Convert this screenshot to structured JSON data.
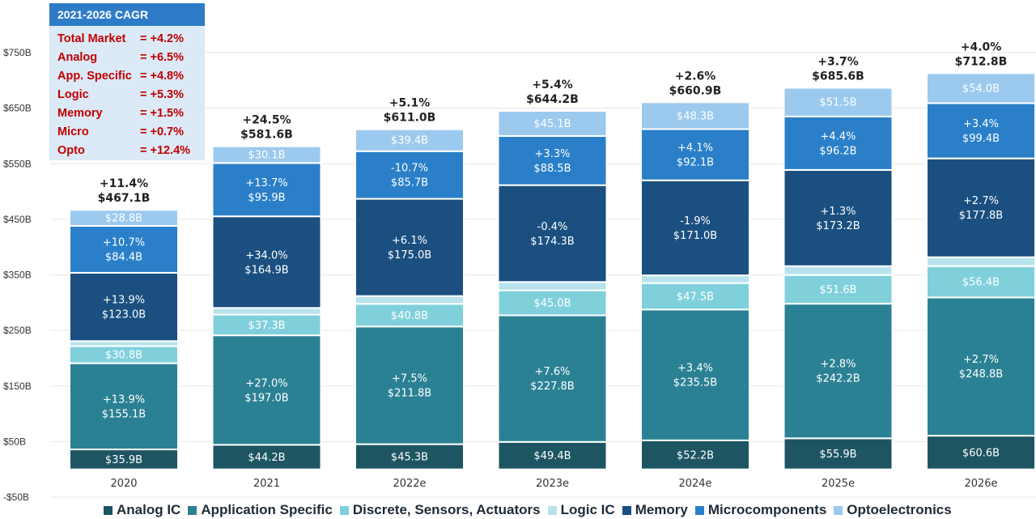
{
  "chart_data": {
    "type": "bar",
    "stacked": true,
    "categories": [
      "2020",
      "2021",
      "2022e",
      "2023e",
      "2024e",
      "2025e",
      "2026e"
    ],
    "yticks": [
      "$750B",
      "$650B",
      "$550B",
      "$450B",
      "$350B",
      "$250B",
      "$150B",
      "$50B",
      "-$50B"
    ],
    "ylim": [
      -50,
      750
    ],
    "grid": true,
    "legend_position": "bottom",
    "totals": [
      {
        "growth": "+11.4%",
        "total": "$467.1B",
        "value": 467.1
      },
      {
        "growth": "+24.5%",
        "total": "$581.6B",
        "value": 581.6
      },
      {
        "growth": "+5.1%",
        "total": "$611.0B",
        "value": 611.0
      },
      {
        "growth": "+5.4%",
        "total": "$644.2B",
        "value": 644.2
      },
      {
        "growth": "+2.6%",
        "total": "$660.9B",
        "value": 660.9
      },
      {
        "growth": "+3.7%",
        "total": "$685.6B",
        "value": 685.6
      },
      {
        "growth": "+4.0%",
        "total": "$712.8B",
        "value": 712.8
      }
    ],
    "series": [
      {
        "name": "Analog IC",
        "color": "#1d5563",
        "values": [
          35.9,
          44.2,
          45.3,
          49.4,
          52.2,
          55.9,
          60.6
        ],
        "labels": [
          [
            "$35.9B"
          ],
          [
            "$44.2B"
          ],
          [
            "$45.3B"
          ],
          [
            "$49.4B"
          ],
          [
            "$52.2B"
          ],
          [
            "$55.9B"
          ],
          [
            "$60.6B"
          ]
        ]
      },
      {
        "name": "Application Specific",
        "color": "#2b8194",
        "values": [
          155.1,
          197.0,
          211.8,
          227.8,
          235.5,
          242.2,
          248.8
        ],
        "labels": [
          [
            "+13.9%",
            "$155.1B"
          ],
          [
            "+27.0%",
            "$197.0B"
          ],
          [
            "+7.5%",
            "$211.8B"
          ],
          [
            "+7.6%",
            "$227.8B"
          ],
          [
            "+3.4%",
            "$235.5B"
          ],
          [
            "+2.8%",
            "$242.2B"
          ],
          [
            "+2.7%",
            "$248.8B"
          ]
        ]
      },
      {
        "name": "Discrete, Sensors, Actuators",
        "color": "#80d0dc",
        "values": [
          30.8,
          37.3,
          40.8,
          45.0,
          47.5,
          51.6,
          56.4
        ],
        "labels": [
          [
            "$30.8B"
          ],
          [
            "$37.3B"
          ],
          [
            "$40.8B"
          ],
          [
            "$45.0B"
          ],
          [
            "$47.5B"
          ],
          [
            "$51.6B"
          ],
          [
            "$56.4B"
          ]
        ]
      },
      {
        "name": "Logic IC",
        "color": "#b8e3ec",
        "values": [
          9,
          12,
          14,
          15,
          14,
          16,
          16
        ],
        "labels": [
          [],
          [],
          [],
          [],
          [],
          [],
          []
        ]
      },
      {
        "name": "Memory",
        "color": "#1a4f80",
        "values": [
          123.0,
          164.9,
          175.0,
          174.3,
          171.0,
          173.2,
          177.8
        ],
        "labels": [
          [
            "+13.9%",
            "$123.0B"
          ],
          [
            "+34.0%",
            "$164.9B"
          ],
          [
            "+6.1%",
            "$175.0B"
          ],
          [
            "-0.4%",
            "$174.3B"
          ],
          [
            "-1.9%",
            "$171.0B"
          ],
          [
            "+1.3%",
            "$173.2B"
          ],
          [
            "+2.7%",
            "$177.8B"
          ]
        ]
      },
      {
        "name": "Microcomponents",
        "color": "#2a7fc8",
        "values": [
          84.4,
          95.9,
          85.7,
          88.5,
          92.1,
          96.2,
          99.4
        ],
        "labels": [
          [
            "+10.7%",
            "$84.4B"
          ],
          [
            "+13.7%",
            "$95.9B"
          ],
          [
            "-10.7%",
            "$85.7B"
          ],
          [
            "+3.3%",
            "$88.5B"
          ],
          [
            "+4.1%",
            "$92.1B"
          ],
          [
            "+4.4%",
            "$96.2B"
          ],
          [
            "+3.4%",
            "$99.4B"
          ]
        ]
      },
      {
        "name": "Optoelectronics",
        "color": "#9cc9ee",
        "values": [
          28.8,
          30.1,
          39.4,
          45.1,
          48.3,
          51.5,
          54.0
        ],
        "labels": [
          [
            "$28.8B"
          ],
          [
            "$30.1B"
          ],
          [
            "$39.4B"
          ],
          [
            "$45.1B"
          ],
          [
            "$48.3B"
          ],
          [
            "$51.5B"
          ],
          [
            "$54.0B"
          ]
        ]
      }
    ]
  },
  "cagr_box": {
    "title": "2021-2026 CAGR",
    "rows": [
      {
        "name": "Total Market",
        "value": "= +4.2%"
      },
      {
        "name": "Analog",
        "value": "= +6.5%"
      },
      {
        "name": "App. Specific",
        "value": "= +4.8%"
      },
      {
        "name": "Logic",
        "value": "= +5.3%"
      },
      {
        "name": "Memory",
        "value": "= +1.5%"
      },
      {
        "name": "Micro",
        "value": "= +0.7%"
      },
      {
        "name": "Opto",
        "value": "= +12.4%"
      }
    ]
  }
}
